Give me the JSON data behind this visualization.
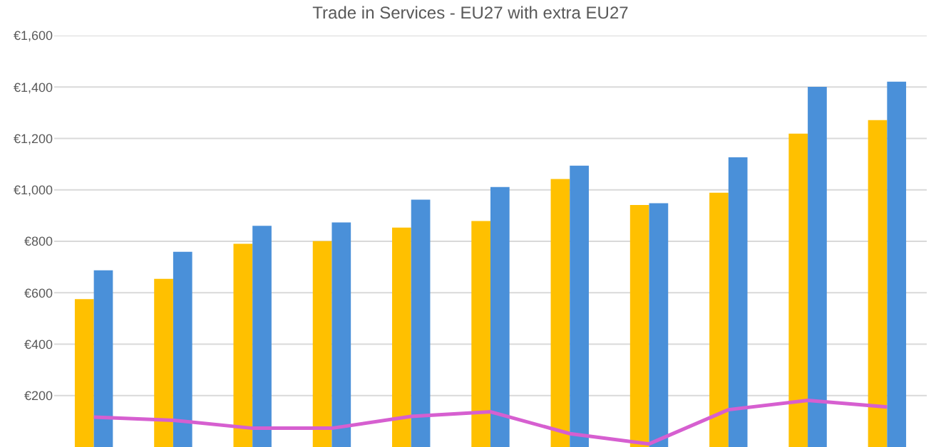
{
  "chart_data": {
    "type": "bar",
    "title": "Trade in Services - EU27 with extra EU27",
    "categories": [
      null,
      null,
      null,
      null,
      null,
      null,
      null,
      null,
      null,
      null,
      null
    ],
    "series": [
      {
        "color": "#ffc000",
        "values": [
          575,
          654,
          790,
          801,
          853,
          879,
          1042,
          941,
          989,
          1219,
          1271
        ]
      },
      {
        "color": "#4a90d9",
        "values": [
          687,
          759,
          860,
          873,
          962,
          1011,
          1094,
          948,
          1127,
          1401,
          1421
        ]
      },
      {
        "type": "line",
        "color": "#d65fd0",
        "values": [
          116,
          104,
          73,
          73,
          119,
          137,
          52,
          12,
          145,
          181,
          156
        ]
      }
    ],
    "ylim": [
      0,
      1600
    ],
    "yticks": [
      {
        "value": 200,
        "label": "€200"
      },
      {
        "value": 400,
        "label": "€400"
      },
      {
        "value": 600,
        "label": "€600"
      },
      {
        "value": 800,
        "label": "€800"
      },
      {
        "value": 1000,
        "label": "€1,000"
      },
      {
        "value": 1200,
        "label": "€1,200"
      },
      {
        "value": 1400,
        "label": "€1,400"
      },
      {
        "value": 1600,
        "label": "€1,600"
      }
    ],
    "grid": "y",
    "legend": false,
    "marker": "none"
  }
}
